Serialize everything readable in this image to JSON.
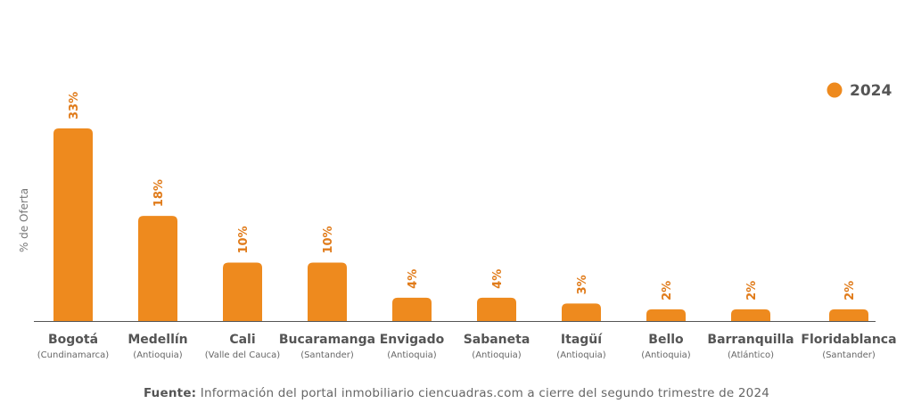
{
  "chart_data": {
    "type": "bar",
    "categories": [
      "Bogotá",
      "Medellín",
      "Cali",
      "Bucaramanga",
      "Envigado",
      "Sabaneta",
      "Itagüí",
      "Bello",
      "Barranquilla",
      "Floridablanca"
    ],
    "subcategories": [
      "(Cundinamarca)",
      "(Antioquia)",
      "(Valle del Cauca)",
      "(Santander)",
      "(Antioquia)",
      "(Antioquia)",
      "(Antioquia)",
      "(Antioquia)",
      "(Atlántico)",
      "(Santander)"
    ],
    "series": [
      {
        "name": "2024",
        "values": [
          33,
          18,
          10,
          10,
          4,
          4,
          3,
          2,
          2,
          2
        ],
        "labels": [
          "33%",
          "18%",
          "10%",
          "10%",
          "4%",
          "4%",
          "3%",
          "2%",
          "2%",
          "2%"
        ]
      }
    ],
    "ylabel": "% de Oferta",
    "ylim": [
      0,
      33
    ],
    "grid": false,
    "legend": "top-right",
    "colors": {
      "bar": "#EE8A1E",
      "label": "#E07B1A",
      "axis": "#555555"
    }
  },
  "source": {
    "prefix": "Fuente:",
    "text": " Información del portal inmobiliario ciencuadras.com a cierre del segundo trimestre de 2024"
  }
}
